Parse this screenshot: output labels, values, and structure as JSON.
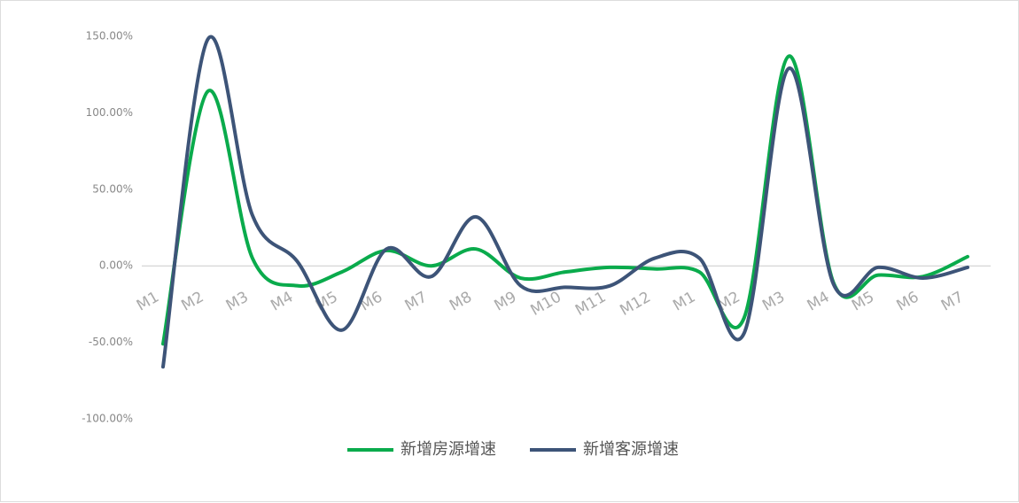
{
  "chart_data": {
    "type": "line",
    "categories": [
      "M1",
      "M2",
      "M3",
      "M4",
      "M5",
      "M6",
      "M7",
      "M8",
      "M9",
      "M10",
      "M11",
      "M12",
      "M1",
      "M2",
      "M3",
      "M4",
      "M5",
      "M6",
      "M7"
    ],
    "series": [
      {
        "name": "新增房源增速",
        "color": "#0aab4c",
        "values": [
          -51,
          114,
          5,
          -13,
          -4,
          10,
          0,
          11,
          -8,
          -4,
          -1,
          -2,
          -4,
          -34,
          137,
          -11,
          -6,
          -7,
          6
        ]
      },
      {
        "name": "新增客源增速",
        "color": "#3d5478",
        "values": [
          -66,
          148,
          33,
          3,
          -42,
          11,
          -7,
          32,
          -13,
          -14,
          -13,
          5,
          5,
          -44,
          129,
          -12,
          -1,
          -8,
          -1
        ]
      }
    ],
    "ylim": [
      -100,
      150
    ],
    "yticks": [
      {
        "value": 150,
        "label": "150.00%"
      },
      {
        "value": 100,
        "label": "100.00%"
      },
      {
        "value": 50,
        "label": "50.00%"
      },
      {
        "value": 0,
        "label": "0.00%"
      },
      {
        "value": -50,
        "label": "-50.00%"
      },
      {
        "value": -100,
        "label": "-100.00%"
      }
    ],
    "grid": false
  }
}
